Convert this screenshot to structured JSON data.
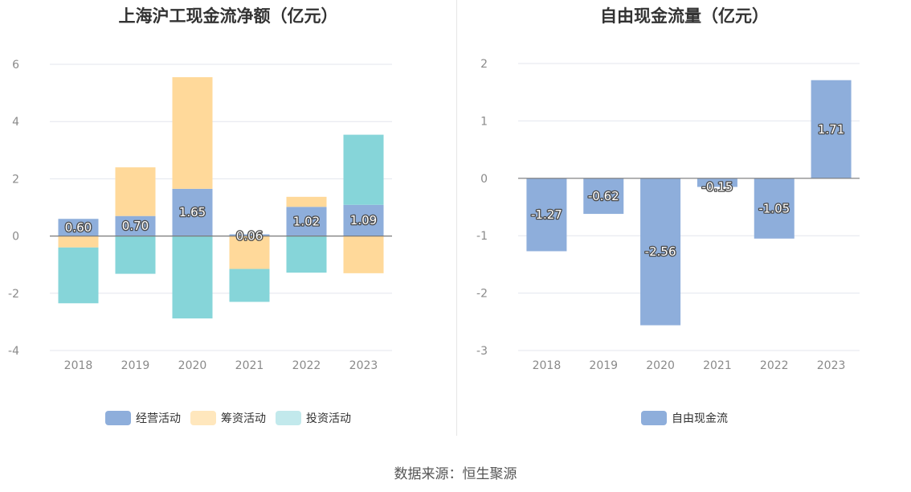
{
  "chart_data": [
    {
      "type": "bar",
      "stacked": true,
      "title": "上海沪工现金流净额（亿元）",
      "categories": [
        "2018",
        "2019",
        "2020",
        "2021",
        "2022",
        "2023"
      ],
      "ylim": [
        -4,
        6
      ],
      "yticks": [
        -4,
        -2,
        0,
        2,
        4,
        6
      ],
      "grid": true,
      "legend_position": "bottom",
      "series": [
        {
          "name": "经营活动",
          "color": "#8eaedb",
          "values": [
            0.6,
            0.7,
            1.65,
            0.06,
            1.02,
            1.09
          ],
          "labels": [
            "0.60",
            "0.70",
            "1.65",
            "0.06",
            "1.02",
            "1.09"
          ]
        },
        {
          "name": "筹资活动",
          "color": "#ffd99a",
          "values": [
            -0.4,
            1.7,
            3.9,
            -1.15,
            0.35,
            -1.3
          ]
        },
        {
          "name": "投资活动",
          "color": "#86d5d9",
          "values": [
            -1.95,
            -1.32,
            -2.88,
            -1.15,
            -1.28,
            2.45
          ]
        }
      ]
    },
    {
      "type": "bar",
      "title": "自由现金流量（亿元）",
      "categories": [
        "2018",
        "2019",
        "2020",
        "2021",
        "2022",
        "2023"
      ],
      "ylim": [
        -3,
        2
      ],
      "yticks": [
        -3,
        -2,
        -1,
        0,
        1,
        2
      ],
      "grid": true,
      "legend_position": "bottom",
      "series": [
        {
          "name": "自由现金流",
          "color": "#8eaedb",
          "values": [
            -1.27,
            -0.62,
            -2.56,
            -0.15,
            -1.05,
            1.71
          ],
          "labels": [
            "-1.27",
            "-0.62",
            "-2.56",
            "-0.15",
            "-1.05",
            "1.71"
          ]
        }
      ]
    }
  ],
  "legend_colors": {
    "operating": "#8eaedb",
    "financing": "#ffe7bd",
    "investing": "#c2e9ec",
    "free_cash_flow": "#8eaedb"
  },
  "footer": {
    "source": "数据来源：恒生聚源"
  }
}
